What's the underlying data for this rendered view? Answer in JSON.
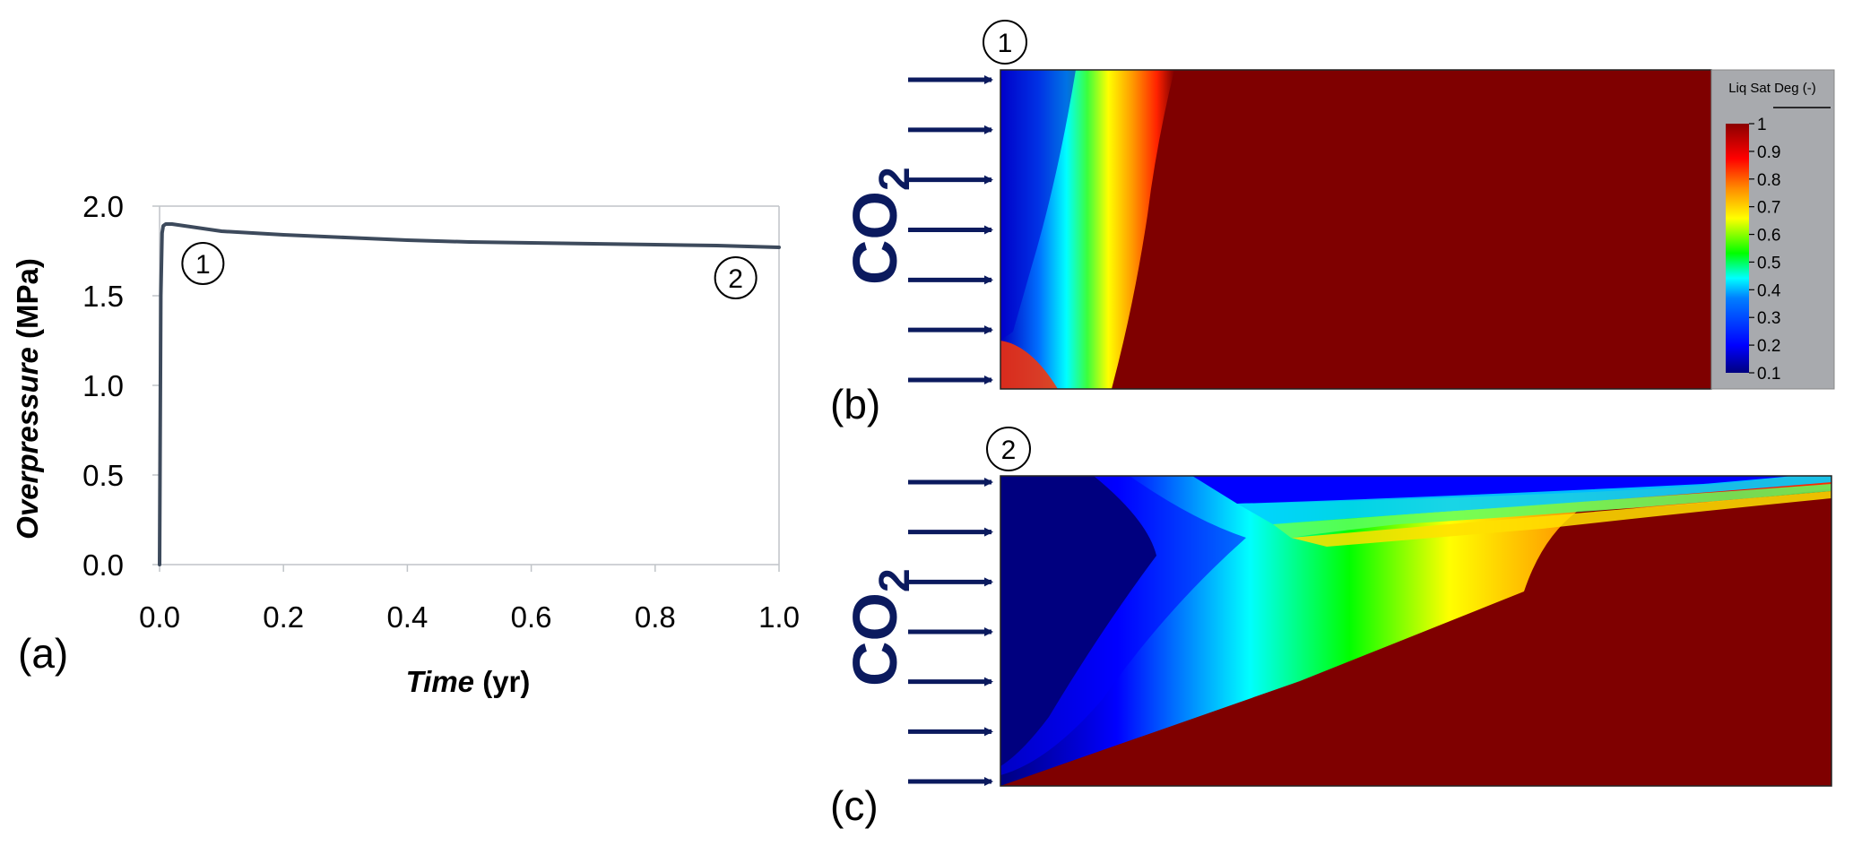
{
  "panel_labels": {
    "a": "(a)",
    "b": "(b)",
    "c": "(c)"
  },
  "markers": {
    "one": "1",
    "two": "2"
  },
  "co2": {
    "main": "CO",
    "sub": "2"
  },
  "colorbar": {
    "title": "Liq Sat Deg (-)",
    "ticks": [
      "1",
      "0.9",
      "0.8",
      "0.7",
      "0.6",
      "0.5",
      "0.4",
      "0.3",
      "0.2",
      "0.1"
    ],
    "range": [
      0.1,
      1
    ],
    "colormap": [
      "#00007f",
      "#0000ff",
      "#007fff",
      "#00ffff",
      "#7fff7f",
      "#ffff00",
      "#ff7f00",
      "#ff0000",
      "#7f0000"
    ]
  },
  "colors": {
    "curve": "#3d4a5c",
    "arrow": "#0b1a5e",
    "co2_text": "#0b1a5e",
    "axis": "#c0c4c8",
    "saturated": "#7f0000"
  },
  "chart_data": {
    "type": "line",
    "title": "",
    "xlabel": {
      "italic": "Time",
      "unit": " (yr)"
    },
    "ylabel": {
      "italic": "Overpressure",
      "unit": " (MPa)"
    },
    "xlim": [
      0,
      1
    ],
    "ylim": [
      0,
      2
    ],
    "xticks": [
      "0.0",
      "0.2",
      "0.4",
      "0.6",
      "0.8",
      "1.0"
    ],
    "yticks": [
      "0.0",
      "0.5",
      "1.0",
      "1.5",
      "2.0"
    ],
    "x": [
      0,
      0.002,
      0.004,
      0.006,
      0.01,
      0.02,
      0.04,
      0.1,
      0.2,
      0.3,
      0.4,
      0.5,
      0.6,
      0.7,
      0.8,
      0.9,
      1.0
    ],
    "y": [
      0,
      1.5,
      1.85,
      1.89,
      1.9,
      1.9,
      1.89,
      1.86,
      1.84,
      1.825,
      1.81,
      1.8,
      1.795,
      1.79,
      1.785,
      1.78,
      1.77
    ],
    "annotations": [
      {
        "label": "1",
        "x": 0.07,
        "y": 1.68
      },
      {
        "label": "2",
        "x": 0.93,
        "y": 1.6
      }
    ],
    "grid": false
  }
}
